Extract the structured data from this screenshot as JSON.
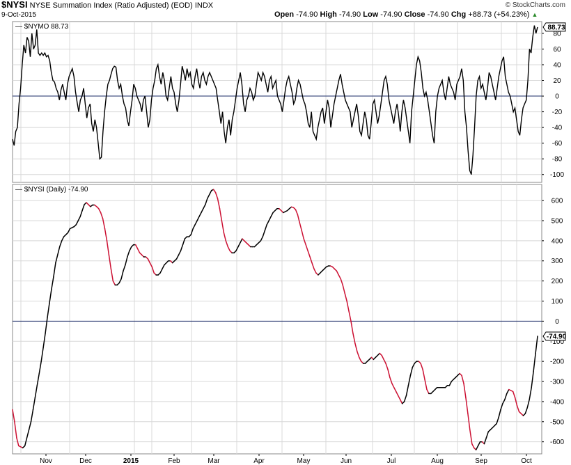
{
  "header": {
    "symbol": "$NYSI",
    "title": "NYSE Summation Index (Ratio Adjusted) (EOD)",
    "exchange": "INDX",
    "date": "9-Oct-2015",
    "open_label": "Open",
    "open": "-74.90",
    "high_label": "High",
    "high": "-74.90",
    "low_label": "Low",
    "low": "-74.90",
    "close_label": "Close",
    "close": "-74.90",
    "chg_label": "Chg",
    "chg": "+88.73 (+54.23%)",
    "logo": "© StockCharts.com"
  },
  "colors": {
    "line": "#000000",
    "down": "#cc1133",
    "zero": "#1a2a66",
    "grid": "#d8d8d8",
    "up_arrow": "#2a8a2a"
  },
  "chart_data": [
    {
      "type": "line",
      "label": "$NYMO 88.73",
      "last_value": "88.73",
      "ylim": [
        -110,
        95
      ],
      "yticks": [
        80,
        60,
        40,
        20,
        0,
        -20,
        -40,
        -60,
        -80,
        -100
      ],
      "zero_line": 0,
      "values": [
        -55,
        -63,
        -45,
        -40,
        -10,
        10,
        40,
        65,
        55,
        75,
        70,
        50,
        80,
        60,
        65,
        85,
        55,
        52,
        55,
        52,
        55,
        50,
        52,
        45,
        30,
        20,
        18,
        10,
        5,
        -5,
        8,
        15,
        5,
        -5,
        15,
        25,
        30,
        35,
        25,
        5,
        -8,
        -20,
        -5,
        0,
        10,
        -10,
        -28,
        -15,
        -10,
        -35,
        -45,
        -30,
        -40,
        -60,
        -80,
        -78,
        -45,
        -20,
        0,
        15,
        20,
        28,
        35,
        38,
        37,
        20,
        10,
        15,
        0,
        -10,
        -15,
        -30,
        -38,
        -20,
        -5,
        15,
        10,
        0,
        -5,
        -10,
        -20,
        -5,
        0,
        -20,
        -40,
        -30,
        -5,
        10,
        20,
        35,
        40,
        25,
        15,
        30,
        20,
        0,
        -5,
        10,
        25,
        10,
        5,
        -10,
        -20,
        -5,
        15,
        38,
        30,
        20,
        35,
        25,
        30,
        15,
        10,
        25,
        35,
        20,
        10,
        25,
        30,
        20,
        15,
        25,
        30,
        25,
        20,
        15,
        10,
        -5,
        -20,
        -35,
        -20,
        -45,
        -60,
        -40,
        -30,
        -50,
        -30,
        -20,
        -5,
        10,
        20,
        30,
        15,
        -10,
        -20,
        -5,
        0,
        10,
        5,
        -5,
        0,
        15,
        30,
        25,
        20,
        30,
        25,
        15,
        5,
        20,
        25,
        10,
        15,
        20,
        0,
        -5,
        -10,
        -20,
        -5,
        10,
        20,
        25,
        15,
        5,
        -10,
        -5,
        10,
        20,
        15,
        5,
        -5,
        -10,
        -20,
        -35,
        -40,
        -20,
        -45,
        -50,
        -55,
        -40,
        -30,
        -20,
        -15,
        -35,
        -20,
        -5,
        -15,
        -40,
        -25,
        -10,
        0,
        10,
        20,
        28,
        15,
        5,
        -5,
        -10,
        -15,
        -20,
        -40,
        -30,
        -20,
        -10,
        -25,
        -45,
        -50,
        -35,
        -20,
        -30,
        -50,
        -55,
        -35,
        -10,
        -5,
        -20,
        -35,
        -25,
        -10,
        5,
        20,
        25,
        15,
        -5,
        -15,
        -25,
        -35,
        -20,
        -10,
        -25,
        -45,
        -20,
        -5,
        -15,
        -30,
        -45,
        -60,
        -20,
        0,
        20,
        40,
        50,
        45,
        30,
        10,
        0,
        5,
        -5,
        -20,
        -35,
        -50,
        -60,
        -20,
        0,
        10,
        15,
        20,
        5,
        -5,
        10,
        25,
        15,
        10,
        5,
        -5,
        15,
        20,
        25,
        35,
        20,
        -20,
        -40,
        -70,
        -95,
        -100,
        -75,
        -40,
        0,
        20,
        25,
        10,
        15,
        5,
        -5,
        10,
        30,
        25,
        15,
        5,
        -5,
        10,
        25,
        35,
        45,
        50,
        25,
        15,
        5,
        0,
        -10,
        -20,
        -15,
        -30,
        -45,
        -50,
        -30,
        -15,
        -10,
        -5,
        20,
        60,
        55,
        75,
        90,
        80,
        88
      ]
    },
    {
      "type": "line",
      "label": "$NYSI (Daily) -74.90",
      "last_value": "-74.90",
      "ylim": [
        -660,
        680
      ],
      "yticks": [
        600,
        500,
        400,
        300,
        200,
        100,
        0,
        -100,
        -200,
        -300,
        -400,
        -500,
        -600
      ],
      "zero_line": 0,
      "x_labels": [
        "Nov",
        "Dec",
        "2015",
        "Feb",
        "Mar",
        "Apr",
        "May",
        "Jun",
        "Jul",
        "Aug",
        "Sep",
        "Oct"
      ],
      "values": [
        -440,
        -500,
        -580,
        -620,
        -625,
        -630,
        -620,
        -580,
        -540,
        -500,
        -440,
        -380,
        -320,
        -260,
        -200,
        -130,
        -60,
        20,
        90,
        160,
        220,
        290,
        330,
        370,
        400,
        420,
        430,
        440,
        460,
        465,
        470,
        480,
        500,
        520,
        550,
        580,
        590,
        580,
        570,
        578,
        578,
        570,
        560,
        540,
        510,
        460,
        400,
        330,
        260,
        200,
        180,
        180,
        190,
        210,
        250,
        280,
        320,
        350,
        370,
        380,
        380,
        360,
        340,
        330,
        320,
        320,
        310,
        290,
        270,
        240,
        230,
        230,
        240,
        260,
        280,
        290,
        300,
        300,
        290,
        300,
        310,
        330,
        350,
        380,
        410,
        420,
        420,
        430,
        460,
        480,
        500,
        520,
        540,
        560,
        580,
        610,
        630,
        650,
        655,
        640,
        610,
        560,
        500,
        440,
        400,
        370,
        350,
        340,
        340,
        350,
        370,
        390,
        410,
        400,
        390,
        380,
        370,
        370,
        370,
        380,
        390,
        400,
        420,
        450,
        480,
        500,
        520,
        540,
        550,
        560,
        560,
        550,
        540,
        545,
        550,
        560,
        568,
        565,
        555,
        530,
        490,
        450,
        410,
        380,
        350,
        320,
        290,
        260,
        240,
        230,
        240,
        250,
        260,
        270,
        275,
        275,
        270,
        260,
        250,
        230,
        210,
        180,
        140,
        100,
        50,
        0,
        -60,
        -110,
        -150,
        -180,
        -200,
        -210,
        -210,
        -200,
        -190,
        -180,
        -190,
        -180,
        -170,
        -160,
        -170,
        -190,
        -210,
        -240,
        -280,
        -310,
        -330,
        -350,
        -370,
        -390,
        -410,
        -400,
        -370,
        -320,
        -270,
        -230,
        -210,
        -200,
        -200,
        -210,
        -240,
        -290,
        -340,
        -360,
        -360,
        -350,
        -340,
        -330,
        -330,
        -330,
        -330,
        -330,
        -320,
        -320,
        -300,
        -290,
        -280,
        -270,
        -260,
        -270,
        -310,
        -380,
        -460,
        -540,
        -610,
        -630,
        -640,
        -620,
        -600,
        -600,
        -610,
        -580,
        -550,
        -540,
        -530,
        -520,
        -510,
        -480,
        -440,
        -410,
        -390,
        -360,
        -340,
        -345,
        -350,
        -380,
        -420,
        -450,
        -460,
        -470,
        -460,
        -430,
        -390,
        -330,
        -250,
        -160,
        -75
      ]
    }
  ]
}
